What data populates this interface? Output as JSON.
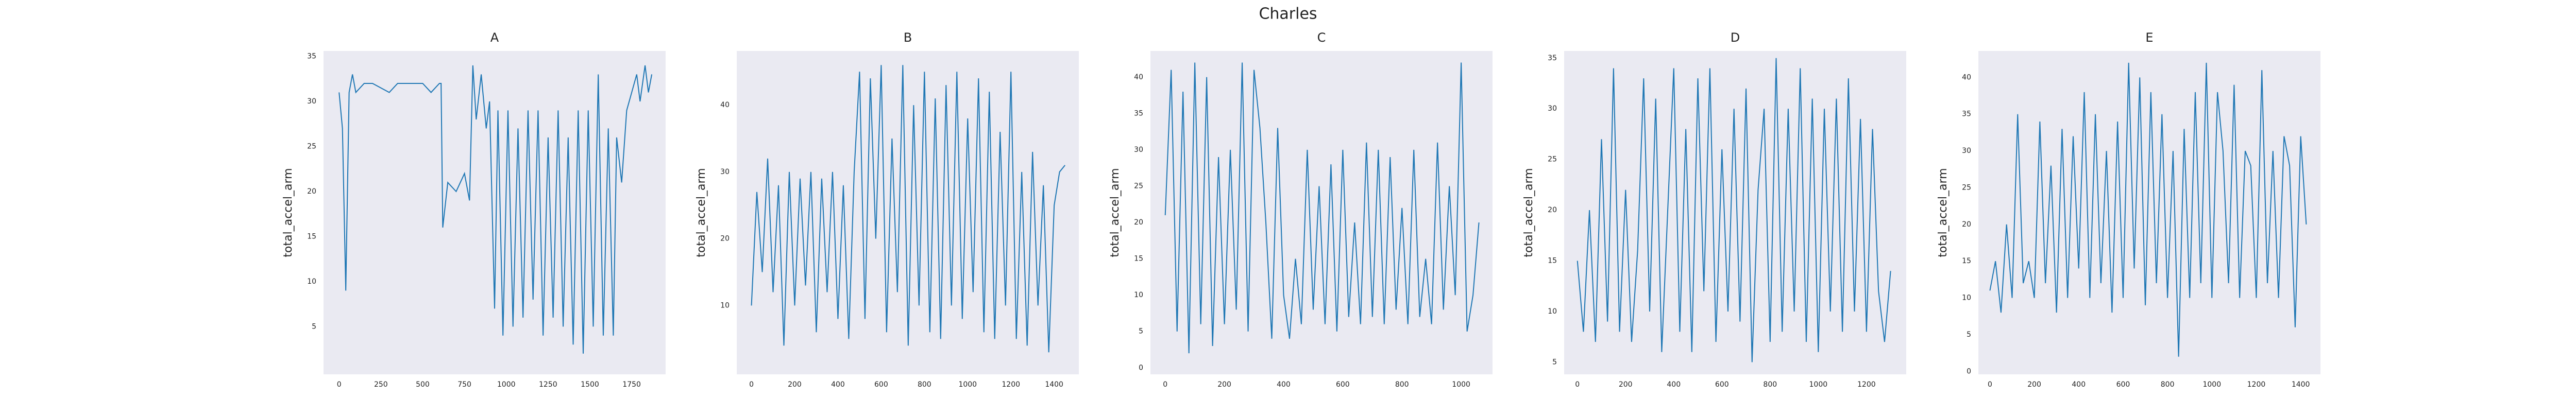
{
  "title": "Charles",
  "chart_data": [
    {
      "type": "line",
      "title": "A",
      "y_label": "total_accel_arm",
      "color": "#1f77b4",
      "grid": false,
      "x": [
        0,
        20,
        40,
        60,
        80,
        100,
        150,
        200,
        300,
        350,
        400,
        500,
        550,
        600,
        610,
        620,
        650,
        700,
        750,
        780,
        800,
        820,
        850,
        880,
        900,
        930,
        950,
        980,
        1010,
        1040,
        1070,
        1100,
        1130,
        1160,
        1190,
        1220,
        1250,
        1280,
        1310,
        1340,
        1370,
        1400,
        1430,
        1460,
        1490,
        1520,
        1550,
        1580,
        1610,
        1640,
        1660,
        1690,
        1720,
        1750,
        1780,
        1800,
        1830,
        1850,
        1870
      ],
      "values": [
        31,
        27,
        9,
        31,
        33,
        31,
        32,
        32,
        31,
        32,
        32,
        32,
        31,
        32,
        32,
        16,
        21,
        20,
        22,
        19,
        34,
        28,
        33,
        27,
        30,
        7,
        29,
        4,
        29,
        5,
        27,
        6,
        29,
        8,
        29,
        4,
        26,
        6,
        29,
        5,
        26,
        3,
        29,
        2,
        29,
        5,
        33,
        4,
        27,
        4,
        26,
        21,
        29,
        31,
        33,
        30,
        34,
        31,
        33
      ],
      "xlim": [
        -93,
        1953
      ],
      "xticks": [
        0,
        250,
        500,
        750,
        1000,
        1250,
        1500,
        1750
      ],
      "ylim": [
        -0.3,
        35.6
      ],
      "yticks": [
        5,
        10,
        15,
        20,
        25,
        30,
        35
      ]
    },
    {
      "type": "line",
      "title": "B",
      "y_label": "total_accel_arm",
      "color": "#1f77b4",
      "grid": false,
      "x": [
        0,
        25,
        50,
        75,
        100,
        125,
        150,
        175,
        200,
        225,
        250,
        275,
        300,
        325,
        350,
        375,
        400,
        425,
        450,
        475,
        500,
        525,
        550,
        575,
        600,
        625,
        650,
        675,
        700,
        725,
        750,
        775,
        800,
        825,
        850,
        875,
        900,
        925,
        950,
        975,
        1000,
        1025,
        1050,
        1075,
        1100,
        1125,
        1150,
        1175,
        1200,
        1225,
        1250,
        1275,
        1300,
        1325,
        1350,
        1375,
        1400,
        1425,
        1450
      ],
      "values": [
        10,
        27,
        15,
        32,
        12,
        28,
        4,
        30,
        10,
        29,
        13,
        30,
        6,
        29,
        12,
        30,
        8,
        28,
        5,
        30,
        45,
        8,
        44,
        20,
        46,
        6,
        35,
        12,
        46,
        4,
        40,
        10,
        45,
        6,
        41,
        5,
        43,
        10,
        45,
        8,
        38,
        12,
        44,
        6,
        42,
        5,
        36,
        10,
        45,
        5,
        30,
        4,
        33,
        10,
        28,
        3,
        25,
        30,
        31
      ],
      "xlim": [
        -68,
        1514
      ],
      "xticks": [
        0,
        200,
        400,
        600,
        800,
        1000,
        1200,
        1400
      ],
      "ylim": [
        -0.3,
        48.1
      ],
      "yticks": [
        10,
        20,
        30,
        40
      ]
    },
    {
      "type": "line",
      "title": "C",
      "y_label": "total_accel_arm",
      "color": "#1f77b4",
      "grid": false,
      "x": [
        0,
        20,
        40,
        60,
        80,
        100,
        120,
        140,
        160,
        180,
        200,
        220,
        240,
        260,
        280,
        300,
        320,
        340,
        360,
        380,
        400,
        420,
        440,
        460,
        480,
        500,
        520,
        540,
        560,
        580,
        600,
        620,
        640,
        660,
        680,
        700,
        720,
        740,
        760,
        780,
        800,
        820,
        840,
        860,
        880,
        900,
        920,
        940,
        960,
        980,
        1000,
        1020,
        1040,
        1060
      ],
      "values": [
        21,
        41,
        5,
        38,
        2,
        42,
        6,
        40,
        3,
        29,
        6,
        30,
        8,
        42,
        5,
        41,
        33,
        20,
        4,
        33,
        10,
        4,
        15,
        6,
        30,
        8,
        25,
        6,
        28,
        5,
        30,
        7,
        20,
        6,
        31,
        7,
        30,
        6,
        29,
        8,
        22,
        6,
        30,
        7,
        15,
        6,
        31,
        8,
        25,
        10,
        42,
        5,
        10,
        20
      ],
      "xlim": [
        -50,
        1106
      ],
      "xticks": [
        0,
        200,
        400,
        600,
        800,
        1000
      ],
      "ylim": [
        -0.9,
        43.6
      ],
      "yticks": [
        0,
        5,
        10,
        15,
        20,
        25,
        30,
        35,
        40
      ]
    },
    {
      "type": "line",
      "title": "D",
      "y_label": "total_accel_arm",
      "color": "#1f77b4",
      "grid": false,
      "x": [
        0,
        25,
        50,
        75,
        100,
        125,
        150,
        175,
        200,
        225,
        250,
        275,
        300,
        325,
        350,
        375,
        400,
        425,
        450,
        475,
        500,
        525,
        550,
        575,
        600,
        625,
        650,
        675,
        700,
        725,
        750,
        775,
        800,
        825,
        850,
        875,
        900,
        925,
        950,
        975,
        1000,
        1025,
        1050,
        1075,
        1100,
        1125,
        1150,
        1175,
        1200,
        1225,
        1250,
        1275,
        1300
      ],
      "values": [
        15,
        8,
        20,
        7,
        27,
        9,
        34,
        8,
        22,
        7,
        16,
        33,
        10,
        31,
        6,
        20,
        34,
        8,
        28,
        6,
        33,
        12,
        34,
        7,
        26,
        10,
        30,
        9,
        32,
        5,
        22,
        30,
        7,
        35,
        8,
        30,
        10,
        34,
        7,
        31,
        6,
        30,
        10,
        31,
        8,
        33,
        10,
        29,
        8,
        28,
        12,
        7,
        14
      ],
      "xlim": [
        -55,
        1365
      ],
      "xticks": [
        0,
        200,
        400,
        600,
        800,
        1000,
        1200
      ],
      "ylim": [
        3.8,
        35.7
      ],
      "yticks": [
        5,
        10,
        15,
        20,
        25,
        30,
        35
      ]
    },
    {
      "type": "line",
      "title": "E",
      "y_label": "total_accel_arm",
      "color": "#1f77b4",
      "grid": false,
      "x": [
        0,
        25,
        50,
        75,
        100,
        125,
        150,
        175,
        200,
        225,
        250,
        275,
        300,
        325,
        350,
        375,
        400,
        425,
        450,
        475,
        500,
        525,
        550,
        575,
        600,
        625,
        650,
        675,
        700,
        725,
        750,
        775,
        800,
        825,
        850,
        875,
        900,
        925,
        950,
        975,
        1000,
        1025,
        1050,
        1075,
        1100,
        1125,
        1150,
        1175,
        1200,
        1225,
        1250,
        1275,
        1300,
        1325,
        1350,
        1375,
        1400,
        1425
      ],
      "values": [
        11,
        15,
        8,
        20,
        10,
        35,
        12,
        15,
        10,
        34,
        12,
        28,
        8,
        33,
        10,
        32,
        14,
        38,
        10,
        35,
        12,
        30,
        8,
        34,
        10,
        42,
        14,
        40,
        9,
        38,
        12,
        35,
        10,
        30,
        2,
        33,
        10,
        38,
        12,
        42,
        10,
        38,
        30,
        12,
        39,
        10,
        30,
        28,
        10,
        41,
        12,
        30,
        10,
        32,
        28,
        6,
        32,
        20
      ],
      "xlim": [
        -52,
        1489
      ],
      "xticks": [
        0,
        200,
        400,
        600,
        800,
        1000,
        1200,
        1400
      ],
      "ylim": [
        -0.4,
        43.6
      ],
      "yticks": [
        0,
        5,
        10,
        15,
        20,
        25,
        30,
        35,
        40
      ]
    }
  ]
}
